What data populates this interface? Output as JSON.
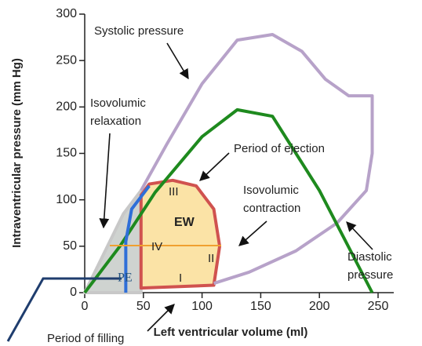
{
  "chart_data": {
    "type": "line",
    "xlabel": "Left ventricular volume (ml)",
    "ylabel": "Intraventricular pressure (mm Hg)",
    "xlim": [
      0,
      250
    ],
    "ylim": [
      0,
      300
    ],
    "xticks": [
      0,
      50,
      100,
      150,
      200,
      250
    ],
    "yticks": [
      0,
      50,
      100,
      150,
      200,
      250,
      300
    ],
    "series": [
      {
        "name": "PE",
        "color": "#c8c8c8",
        "fill": "#cfd3d0",
        "x": [
          0,
          33,
          48,
          48,
          0
        ],
        "y": [
          0,
          85,
          110,
          0,
          0
        ]
      },
      {
        "name": "EW",
        "color": "#d0524f",
        "fill": "#fbe3a6",
        "x": [
          48,
          110,
          115,
          110,
          95,
          75,
          55,
          48,
          48
        ],
        "y": [
          5,
          8,
          50,
          90,
          115,
          121,
          117,
          105,
          5
        ]
      },
      {
        "name": "Systolic pressure",
        "color": "#b7a2c9",
        "x": [
          48,
          70,
          100,
          130,
          160,
          185,
          205,
          225,
          245,
          245,
          240,
          215,
          180,
          140,
          110
        ],
        "y": [
          110,
          160,
          225,
          272,
          278,
          260,
          230,
          212,
          212,
          150,
          110,
          75,
          45,
          22,
          10
        ]
      },
      {
        "name": "Diastolic pressure",
        "color": "#1e8a1e",
        "x": [
          0,
          30,
          60,
          100,
          130,
          160,
          200,
          245
        ],
        "y": [
          0,
          50,
          108,
          168,
          197,
          190,
          110,
          0
        ]
      },
      {
        "name": "Isovolumic relaxation",
        "color": "#2f6fd8",
        "x": [
          35,
          35,
          40,
          55
        ],
        "y": [
          0,
          55,
          90,
          115
        ]
      }
    ],
    "annotations": [
      {
        "lines": [
          "Systolic pressure"
        ]
      },
      {
        "lines": [
          "Isovolumic",
          "relaxation"
        ]
      },
      {
        "lines": [
          "Period of ejection"
        ]
      },
      {
        "lines": [
          "Isovolumic",
          "contraction"
        ]
      },
      {
        "lines": [
          "Diastolic",
          "pressure"
        ]
      },
      {
        "lines": [
          "Period of filling"
        ]
      },
      {
        "lines": [
          "EW"
        ]
      },
      {
        "lines": [
          "I"
        ]
      },
      {
        "lines": [
          "II"
        ]
      },
      {
        "lines": [
          "III"
        ]
      },
      {
        "lines": [
          "IV"
        ]
      },
      {
        "lines": [
          "PE"
        ]
      }
    ]
  }
}
